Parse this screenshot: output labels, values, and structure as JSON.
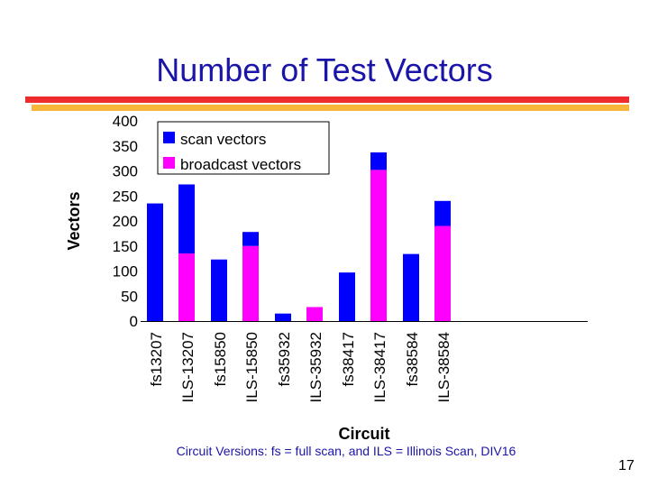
{
  "slide": {
    "title": "Number of Test Vectors",
    "caption": "Circuit Versions:  fs = full scan, and ILS = Illinois Scan, DIV16",
    "page_number": "17"
  },
  "colors": {
    "scan": "#0000ff",
    "broadcast": "#ff00ff",
    "title": "#1a14a8",
    "accent_red": "#ee2c2c",
    "accent_orange": "#f7b53a"
  },
  "chart_data": {
    "type": "bar",
    "stacked": true,
    "categories": [
      "fs13207",
      "ILS-13207",
      "fs15850",
      "ILS-15850",
      "fs35932",
      "ILS-35932",
      "fs38417",
      "ILS-38417",
      "fs38584",
      "ILS-38584"
    ],
    "series": [
      {
        "name": "broadcast vectors",
        "values": [
          0,
          135,
          0,
          150,
          0,
          28,
          0,
          302,
          0,
          190
        ]
      },
      {
        "name": "scan vectors",
        "values": [
          235,
          138,
          123,
          28,
          15,
          0,
          97,
          35,
          134,
          50
        ]
      }
    ],
    "totals": [
      235,
      273,
      123,
      178,
      15,
      28,
      97,
      337,
      134,
      240
    ],
    "xlabel": "Circuit",
    "ylabel": "Vectors",
    "ylim": [
      0,
      400
    ],
    "yticks": [
      0,
      50,
      100,
      150,
      200,
      250,
      300,
      350,
      400
    ],
    "legend": [
      "scan vectors",
      "broadcast vectors"
    ],
    "legend_position": "top-left",
    "grid": false
  }
}
